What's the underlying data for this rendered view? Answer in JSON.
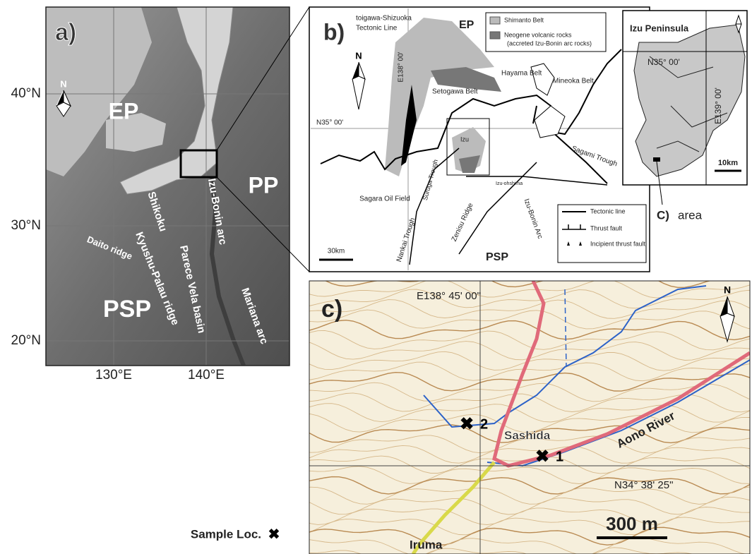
{
  "panel_a": {
    "label": "a)",
    "plates": {
      "ep": "EP",
      "pp": "PP",
      "psp": "PSP"
    },
    "north": "N",
    "lat_labels": [
      "40°N",
      "30°N",
      "20°N"
    ],
    "lon_labels": [
      "130°E",
      "140°E"
    ],
    "features": [
      "Izu-Bonin arc",
      "Shikoku",
      "Parece Vela basin",
      "Kyushu-Palau ridge",
      "Daito ridge",
      "Mariana arc"
    ]
  },
  "panel_b": {
    "label": "b)",
    "tectonic_line_name": [
      "toigawa-Shizuoka",
      "Tectonic Line"
    ],
    "ep": "EP",
    "psp": "PSP",
    "north": "N",
    "meridian": "E138°  00'",
    "parallel": "N35°  00'",
    "legend": [
      "Shimanto Belt",
      "Neogene volcanic rocks",
      "(accreted Izu-Bonin arc rocks)"
    ],
    "places": [
      "Setogawa Belt",
      "Hayama Belt",
      "Mineoka Belt",
      "Izu",
      "Izu-ohshima",
      "Sagami Trough",
      "Suruga Trough",
      "Sagara Oil Field",
      "Nankai Trough",
      "Zenisu Ridge",
      "Izu-Bonin Arc"
    ],
    "scale": "30km",
    "line_legend": [
      "Tectonic line",
      "Thrust fault",
      "Incipient thrust fault"
    ]
  },
  "inset": {
    "title": "Izu Peninsula",
    "parallel": "N35°  00'",
    "meridian": "E139°  00'",
    "scale": "10km",
    "area_label": [
      "C)",
      "area"
    ]
  },
  "panel_c": {
    "label": "c)",
    "meridian": "E138°  45' 00\"",
    "parallel": "N34°  38' 25\"",
    "north": "N",
    "places": [
      "Sashida",
      "Aono River",
      "Iruma"
    ],
    "sites": [
      "2",
      "1"
    ],
    "scale": "300 m"
  },
  "legend": {
    "label": "Sample Loc.",
    "marker": "✖"
  }
}
